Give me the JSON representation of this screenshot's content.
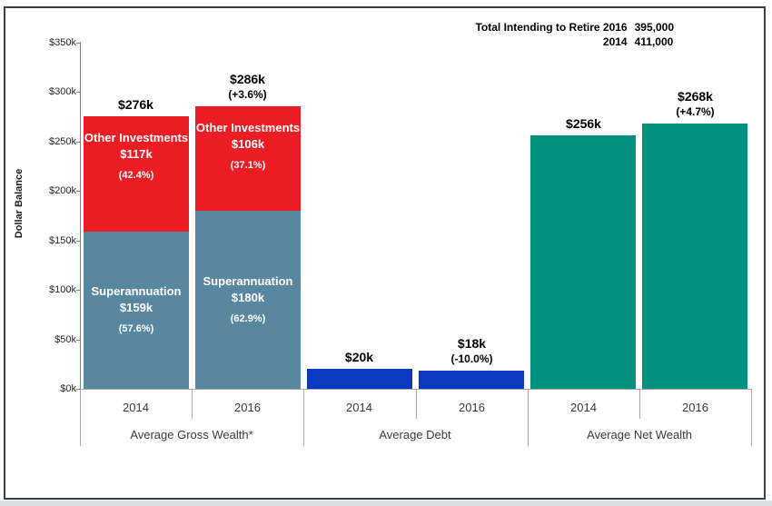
{
  "chart_data": {
    "type": "bar",
    "variant": "grouped-stacked",
    "title": "Total Intending to Retire",
    "annotation_rows": [
      {
        "label": "Total Intending to Retire 2016",
        "value": "395,000"
      },
      {
        "label": "2014",
        "value": "411,000"
      }
    ],
    "ylabel": "Dollar Balance",
    "ylim_k": [
      0,
      350
    ],
    "yticks_k": [
      0,
      50,
      100,
      150,
      200,
      250,
      300,
      350
    ],
    "ytick_labels": [
      "$0k",
      "$50k",
      "$100k",
      "$150k",
      "$200k",
      "$250k",
      "$300k",
      "$350k"
    ],
    "grid": false,
    "legend_position": "none",
    "groups": [
      {
        "label": "Average Gross Wealth*",
        "bars": [
          {
            "year": "2014",
            "total_k": 276,
            "total_label": "$276k",
            "delta_label": "",
            "segments": [
              {
                "name": "Superannuation",
                "value_k": 159,
                "value_label": "$159k",
                "pct_label": "(57.6%)",
                "color": "#5A87A0"
              },
              {
                "name": "Other Investments",
                "value_k": 117,
                "value_label": "$117k",
                "pct_label": "(42.4%)",
                "color": "#EC1C24"
              }
            ]
          },
          {
            "year": "2016",
            "total_k": 286,
            "total_label": "$286k",
            "delta_label": "(+3.6%)",
            "segments": [
              {
                "name": "Superannuation",
                "value_k": 180,
                "value_label": "$180k",
                "pct_label": "(62.9%)",
                "color": "#5A87A0"
              },
              {
                "name": "Other Investments",
                "value_k": 106,
                "value_label": "$106k",
                "pct_label": "(37.1%)",
                "color": "#EC1C24"
              }
            ]
          }
        ]
      },
      {
        "label": "Average Debt",
        "bars": [
          {
            "year": "2014",
            "total_k": 20,
            "total_label": "$20k",
            "delta_label": "",
            "segments": [
              {
                "name": "",
                "value_k": 20,
                "value_label": "",
                "pct_label": "",
                "color": "#0D38C2"
              }
            ]
          },
          {
            "year": "2016",
            "total_k": 18,
            "total_label": "$18k",
            "delta_label": "(-10.0%)",
            "segments": [
              {
                "name": "",
                "value_k": 18,
                "value_label": "",
                "pct_label": "",
                "color": "#0D38C2"
              }
            ]
          }
        ]
      },
      {
        "label": "Average Net Wealth",
        "bars": [
          {
            "year": "2014",
            "total_k": 256,
            "total_label": "$256k",
            "delta_label": "",
            "segments": [
              {
                "name": "",
                "value_k": 256,
                "value_label": "",
                "pct_label": "",
                "color": "#00917E"
              }
            ]
          },
          {
            "year": "2016",
            "total_k": 268,
            "total_label": "$268k",
            "delta_label": "(+4.7%)",
            "segments": [
              {
                "name": "",
                "value_k": 268,
                "value_label": "",
                "pct_label": "",
                "color": "#00917E"
              }
            ]
          }
        ]
      }
    ]
  }
}
